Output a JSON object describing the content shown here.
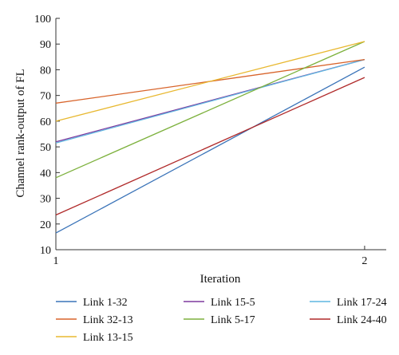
{
  "chart_data": {
    "type": "line",
    "title": "",
    "xlabel": "Iteration",
    "ylabel": "Channel rank-output of FL",
    "x": [
      1,
      2
    ],
    "x_ticks": [
      "1",
      "2"
    ],
    "xlim": [
      1,
      2.07
    ],
    "ylim": [
      10,
      100
    ],
    "y_ticks": [
      "10",
      "20",
      "30",
      "40",
      "50",
      "60",
      "70",
      "80",
      "90",
      "100"
    ],
    "grid": false,
    "legend_position": "bottom",
    "series": [
      {
        "name": "Link 1-32",
        "color": "#3a73b8",
        "values": [
          16.5,
          81
        ]
      },
      {
        "name": "Link 15-5",
        "color": "#7e3a9e",
        "values": [
          52,
          84
        ]
      },
      {
        "name": "Link 17-24",
        "color": "#5fb6e0",
        "values": [
          51.5,
          84
        ]
      },
      {
        "name": "Link 32-13",
        "color": "#d8642b",
        "values": [
          67,
          84
        ]
      },
      {
        "name": "Link 5-17",
        "color": "#7db13d",
        "values": [
          38,
          91
        ]
      },
      {
        "name": "Link 24-40",
        "color": "#b02a2a",
        "values": [
          23.5,
          77
        ]
      },
      {
        "name": "Link 13-15",
        "color": "#e8b830",
        "values": [
          60,
          91
        ]
      }
    ]
  }
}
